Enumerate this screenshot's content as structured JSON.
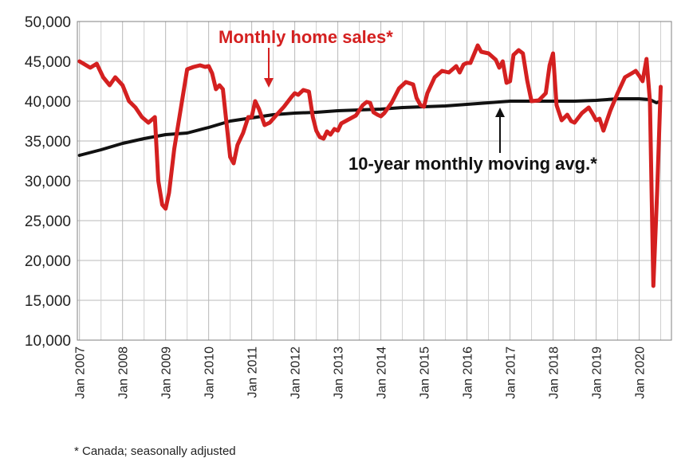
{
  "chart_data": {
    "type": "line",
    "x": [
      "Jan 2007",
      "Jan 2008",
      "Jan 2009",
      "Jan 2010",
      "Jan 2011",
      "Jan 2012",
      "Jan 2013",
      "Jan 2014",
      "Jan 2015",
      "Jan 2016",
      "Jan 2017",
      "Jan 2018",
      "Jan 2019",
      "Jan 2020"
    ],
    "ylim": [
      10000,
      50000
    ],
    "yticks": [
      "10,000",
      "15,000",
      "20,000",
      "25,000",
      "30,000",
      "35,000",
      "40,000",
      "45,000",
      "50,000"
    ],
    "grid": true,
    "series": [
      {
        "name": "Monthly home sales*",
        "color": "#d42020",
        "points": [
          [
            2007.0,
            45000
          ],
          [
            2007.25,
            44200
          ],
          [
            2007.4,
            44700
          ],
          [
            2007.55,
            43000
          ],
          [
            2007.7,
            42000
          ],
          [
            2007.83,
            43000
          ],
          [
            2008.0,
            42000
          ],
          [
            2008.15,
            40000
          ],
          [
            2008.3,
            39200
          ],
          [
            2008.45,
            38000
          ],
          [
            2008.6,
            37300
          ],
          [
            2008.75,
            38000
          ],
          [
            2008.83,
            30000
          ],
          [
            2008.92,
            27000
          ],
          [
            2009.0,
            26500
          ],
          [
            2009.08,
            28500
          ],
          [
            2009.2,
            34000
          ],
          [
            2009.35,
            39000
          ],
          [
            2009.5,
            44000
          ],
          [
            2009.65,
            44300
          ],
          [
            2009.8,
            44500
          ],
          [
            2009.92,
            44300
          ],
          [
            2010.0,
            44400
          ],
          [
            2010.08,
            43500
          ],
          [
            2010.17,
            41500
          ],
          [
            2010.25,
            42000
          ],
          [
            2010.33,
            41500
          ],
          [
            2010.42,
            37000
          ],
          [
            2010.5,
            33000
          ],
          [
            2010.58,
            32200
          ],
          [
            2010.67,
            34500
          ],
          [
            2010.8,
            36000
          ],
          [
            2010.92,
            38000
          ],
          [
            2011.0,
            38000
          ],
          [
            2011.08,
            40000
          ],
          [
            2011.17,
            39000
          ],
          [
            2011.3,
            37000
          ],
          [
            2011.42,
            37300
          ],
          [
            2011.58,
            38300
          ],
          [
            2011.75,
            39300
          ],
          [
            2011.92,
            40500
          ],
          [
            2012.0,
            41000
          ],
          [
            2012.08,
            40800
          ],
          [
            2012.2,
            41400
          ],
          [
            2012.33,
            41200
          ],
          [
            2012.42,
            38000
          ],
          [
            2012.5,
            36300
          ],
          [
            2012.58,
            35500
          ],
          [
            2012.67,
            35300
          ],
          [
            2012.75,
            36200
          ],
          [
            2012.83,
            35800
          ],
          [
            2012.92,
            36500
          ],
          [
            2013.0,
            36300
          ],
          [
            2013.08,
            37200
          ],
          [
            2013.25,
            37700
          ],
          [
            2013.42,
            38200
          ],
          [
            2013.58,
            39500
          ],
          [
            2013.67,
            39900
          ],
          [
            2013.75,
            39800
          ],
          [
            2013.83,
            38600
          ],
          [
            2013.92,
            38300
          ],
          [
            2014.0,
            38100
          ],
          [
            2014.08,
            38500
          ],
          [
            2014.25,
            39800
          ],
          [
            2014.42,
            41600
          ],
          [
            2014.58,
            42400
          ],
          [
            2014.75,
            42100
          ],
          [
            2014.83,
            40400
          ],
          [
            2014.92,
            39500
          ],
          [
            2015.0,
            39300
          ],
          [
            2015.08,
            41000
          ],
          [
            2015.25,
            43000
          ],
          [
            2015.42,
            43800
          ],
          [
            2015.58,
            43600
          ],
          [
            2015.75,
            44400
          ],
          [
            2015.83,
            43600
          ],
          [
            2015.92,
            44600
          ],
          [
            2016.0,
            44800
          ],
          [
            2016.08,
            44800
          ],
          [
            2016.25,
            47000
          ],
          [
            2016.33,
            46200
          ],
          [
            2016.5,
            46000
          ],
          [
            2016.67,
            45200
          ],
          [
            2016.75,
            44200
          ],
          [
            2016.83,
            45000
          ],
          [
            2016.92,
            42300
          ],
          [
            2017.0,
            42500
          ],
          [
            2017.08,
            45800
          ],
          [
            2017.2,
            46400
          ],
          [
            2017.3,
            46000
          ],
          [
            2017.4,
            42600
          ],
          [
            2017.5,
            40000
          ],
          [
            2017.67,
            40100
          ],
          [
            2017.83,
            41000
          ],
          [
            2017.92,
            44500
          ],
          [
            2018.0,
            46000
          ],
          [
            2018.08,
            39500
          ],
          [
            2018.2,
            37600
          ],
          [
            2018.33,
            38300
          ],
          [
            2018.42,
            37500
          ],
          [
            2018.5,
            37300
          ],
          [
            2018.67,
            38500
          ],
          [
            2018.83,
            39200
          ],
          [
            2018.92,
            38400
          ],
          [
            2019.0,
            37600
          ],
          [
            2019.08,
            37800
          ],
          [
            2019.17,
            36300
          ],
          [
            2019.33,
            38800
          ],
          [
            2019.5,
            41000
          ],
          [
            2019.67,
            43000
          ],
          [
            2019.83,
            43500
          ],
          [
            2019.92,
            43800
          ],
          [
            2020.0,
            43200
          ],
          [
            2020.08,
            42500
          ],
          [
            2020.17,
            45300
          ],
          [
            2020.25,
            40000
          ],
          [
            2020.33,
            16800
          ],
          [
            2020.42,
            29000
          ],
          [
            2020.5,
            41800
          ]
        ]
      },
      {
        "name": "10-year monthly moving avg.*",
        "color": "#111111",
        "points": [
          [
            2007.0,
            33200
          ],
          [
            2007.5,
            33900
          ],
          [
            2008.0,
            34700
          ],
          [
            2008.5,
            35300
          ],
          [
            2009.0,
            35800
          ],
          [
            2009.5,
            36000
          ],
          [
            2010.0,
            36700
          ],
          [
            2010.5,
            37500
          ],
          [
            2011.0,
            37900
          ],
          [
            2011.5,
            38300
          ],
          [
            2012.0,
            38500
          ],
          [
            2012.5,
            38600
          ],
          [
            2013.0,
            38800
          ],
          [
            2013.5,
            38900
          ],
          [
            2014.0,
            39000
          ],
          [
            2014.5,
            39200
          ],
          [
            2015.0,
            39300
          ],
          [
            2015.5,
            39400
          ],
          [
            2016.0,
            39600
          ],
          [
            2016.5,
            39800
          ],
          [
            2017.0,
            40000
          ],
          [
            2017.5,
            40000
          ],
          [
            2018.0,
            40000
          ],
          [
            2018.5,
            40000
          ],
          [
            2019.0,
            40100
          ],
          [
            2019.5,
            40300
          ],
          [
            2020.0,
            40300
          ],
          [
            2020.25,
            40200
          ],
          [
            2020.4,
            39800
          ],
          [
            2020.5,
            40000
          ]
        ]
      }
    ]
  },
  "annotations": {
    "sales_label": "Monthly home sales*",
    "avg_label": "10-year monthly moving avg.*"
  },
  "footnote": "* Canada; seasonally adjusted"
}
